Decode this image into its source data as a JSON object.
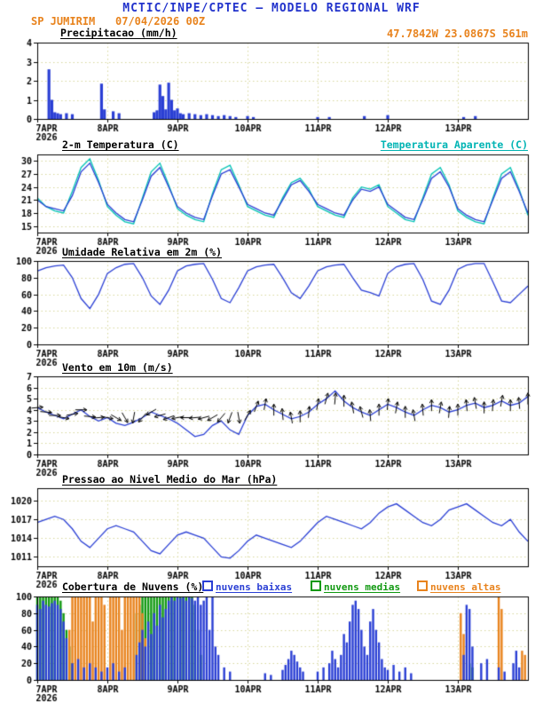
{
  "header": {
    "title": "MCTIC/INPE/CPTEC — MODELO REGIONAL WRF",
    "station": "SP JUMIRIM",
    "run": "07/04/2026 00Z",
    "location": "47.7842W 23.0867S 561m"
  },
  "colors": {
    "header_blue": "#2233cc",
    "accent_orange": "#e8831d",
    "line_blue": "#2a3fd4",
    "apparent_cyan": "#00b4b4",
    "cloud_green": "#119911",
    "grid_dots": "#d6d69c",
    "axis_black": "#000000"
  },
  "x_axis": {
    "tick_labels": [
      "7APR",
      "8APR",
      "9APR",
      "10APR",
      "11APR",
      "12APR",
      "13APR"
    ],
    "year": "2026",
    "hours_total": 168,
    "tick_interval_hours": 24
  },
  "chart_data": [
    {
      "id": "precipitation",
      "type": "bar",
      "title": "Precipitacao (mm/h)",
      "ylabel": "mm/h",
      "ylim": [
        0,
        4
      ],
      "yticks": [
        0,
        1,
        2,
        3,
        4
      ],
      "color": "#2a3fd4",
      "bars": [
        [
          4,
          2.6
        ],
        [
          5,
          1.0
        ],
        [
          6,
          0.35
        ],
        [
          7,
          0.3
        ],
        [
          8,
          0.25
        ],
        [
          10,
          0.3
        ],
        [
          12,
          0.25
        ],
        [
          22,
          1.85
        ],
        [
          23,
          0.5
        ],
        [
          26,
          0.4
        ],
        [
          28,
          0.3
        ],
        [
          40,
          0.35
        ],
        [
          41,
          0.45
        ],
        [
          42,
          1.8
        ],
        [
          43,
          1.2
        ],
        [
          44,
          0.5
        ],
        [
          45,
          1.9
        ],
        [
          46,
          1.0
        ],
        [
          47,
          0.45
        ],
        [
          48,
          0.55
        ],
        [
          49,
          0.3
        ],
        [
          50,
          0.25
        ],
        [
          52,
          0.3
        ],
        [
          54,
          0.25
        ],
        [
          56,
          0.2
        ],
        [
          58,
          0.25
        ],
        [
          60,
          0.2
        ],
        [
          62,
          0.15
        ],
        [
          64,
          0.2
        ],
        [
          66,
          0.15
        ],
        [
          68,
          0.1
        ],
        [
          72,
          0.15
        ],
        [
          74,
          0.1
        ],
        [
          96,
          0.1
        ],
        [
          100,
          0.1
        ],
        [
          112,
          0.15
        ],
        [
          120,
          0.2
        ],
        [
          146,
          0.1
        ],
        [
          150,
          0.15
        ]
      ]
    },
    {
      "id": "temperature",
      "type": "line",
      "title": "2-m Temperatura (C)",
      "legend_right": "Temperatura Aparente (C)",
      "ylim": [
        13.5,
        31.5
      ],
      "yticks": [
        15,
        18,
        21,
        24,
        27,
        30
      ],
      "x_step_hours": 3,
      "series": [
        {
          "name": "Temperatura Aparente (C)",
          "color": "#00c3b4",
          "values": [
            21.5,
            19.5,
            18.5,
            18,
            23,
            28.5,
            30.5,
            25.5,
            19.5,
            17.5,
            16,
            15.5,
            21.5,
            27.5,
            29.5,
            24.5,
            19,
            17.5,
            16.5,
            16,
            22.5,
            28,
            29,
            24.5,
            19.5,
            18.5,
            17.5,
            17,
            21.5,
            25,
            26,
            23.5,
            19.5,
            18.5,
            17.5,
            17,
            21.5,
            24,
            23.5,
            24.5,
            19.5,
            18,
            16.5,
            16,
            21.5,
            27,
            28.5,
            24.5,
            18.5,
            17,
            16,
            15.5,
            21.5,
            27,
            28.5,
            23.5,
            17.5
          ]
        },
        {
          "name": "2-m Temperatura (C)",
          "color": "#2a3fd4",
          "values": [
            21,
            19.5,
            19,
            18.5,
            22,
            27.5,
            29.5,
            25,
            20,
            18,
            16.5,
            16,
            21,
            26.5,
            28.5,
            24,
            19.5,
            18,
            17,
            16.5,
            22,
            27,
            28,
            24,
            20,
            19,
            18,
            17.5,
            21,
            24.5,
            25.5,
            23,
            20,
            19,
            18,
            17.5,
            21,
            23.5,
            23,
            24,
            20,
            18.5,
            17,
            16.5,
            21,
            26,
            27.5,
            24,
            19,
            17.5,
            16.5,
            16,
            21,
            26,
            27.5,
            23,
            18
          ]
        }
      ]
    },
    {
      "id": "humidity",
      "type": "line",
      "title": "Umidade Relativa em 2m (%)",
      "ylim": [
        0,
        100
      ],
      "yticks": [
        0,
        20,
        40,
        60,
        80,
        100
      ],
      "x_step_hours": 3,
      "series": [
        {
          "name": "Umidade Relativa",
          "color": "#2a3fd4",
          "values": [
            88,
            92,
            94,
            95,
            80,
            55,
            43,
            60,
            85,
            92,
            96,
            97,
            80,
            58,
            48,
            65,
            88,
            94,
            96,
            97,
            78,
            55,
            50,
            68,
            88,
            93,
            95,
            96,
            80,
            62,
            55,
            70,
            88,
            93,
            95,
            96,
            80,
            65,
            62,
            58,
            85,
            93,
            96,
            97,
            78,
            52,
            48,
            65,
            90,
            95,
            97,
            97,
            75,
            52,
            50,
            60,
            70
          ]
        }
      ]
    },
    {
      "id": "wind",
      "type": "wind",
      "title": "Vento em 10m (m/s)",
      "ylim": [
        0,
        7
      ],
      "yticks": [
        0,
        1,
        2,
        3,
        4,
        5,
        6,
        7
      ],
      "x_step_hours": 3,
      "series": [
        {
          "name": "Velocidade do vento",
          "color": "#2a3fd4",
          "values": [
            4.2,
            3.8,
            3.5,
            3.2,
            3.6,
            4.0,
            3.4,
            3.0,
            3.3,
            2.8,
            2.6,
            2.9,
            3.3,
            3.8,
            3.5,
            3.2,
            2.8,
            2.2,
            1.6,
            1.8,
            2.6,
            3.0,
            2.2,
            1.8,
            3.5,
            4.3,
            4.5,
            4.0,
            3.6,
            3.2,
            3.4,
            3.8,
            4.5,
            5.0,
            5.7,
            4.8,
            4.2,
            3.8,
            3.5,
            4.0,
            4.5,
            4.2,
            3.8,
            3.5,
            4.0,
            4.4,
            4.2,
            3.8,
            4.0,
            4.4,
            4.6,
            4.2,
            4.4,
            4.8,
            4.4,
            4.6,
            5.2
          ]
        }
      ],
      "barbs": {
        "color": "#000000",
        "directions_deg": [
          85,
          95,
          90,
          100,
          80,
          90,
          95,
          85,
          100,
          120,
          150,
          190,
          220,
          240,
          255,
          250,
          260,
          270,
          265,
          255,
          240,
          220,
          200,
          170,
          30,
          20,
          10,
          0,
          355,
          350,
          0,
          5,
          10,
          15,
          5,
          0,
          350,
          345,
          355,
          0,
          5,
          10,
          0,
          350,
          355,
          0,
          10,
          5,
          0,
          355,
          350,
          0,
          5,
          10,
          0,
          355,
          0
        ]
      }
    },
    {
      "id": "pressure",
      "type": "line",
      "title": "Pressao ao Nivel Medio do Mar (hPa)",
      "ylim": [
        1009.5,
        1022
      ],
      "yticks": [
        1011,
        1014,
        1017,
        1020
      ],
      "x_step_hours": 3,
      "series": [
        {
          "name": "Pressao ao nivel medio do mar",
          "color": "#2a3fd4",
          "values": [
            1016.5,
            1017,
            1017.5,
            1017,
            1015.5,
            1013.5,
            1012.5,
            1014,
            1015.5,
            1016,
            1015.5,
            1015,
            1013.5,
            1012,
            1011.5,
            1013,
            1014.5,
            1015,
            1014.5,
            1014,
            1012.5,
            1011,
            1010.8,
            1012,
            1013.5,
            1014.5,
            1014,
            1013.5,
            1013,
            1012.5,
            1013.5,
            1015,
            1016.5,
            1017.5,
            1017,
            1016.5,
            1016,
            1015.5,
            1016.5,
            1018,
            1019,
            1019.5,
            1018.5,
            1017.5,
            1016.5,
            1016,
            1017,
            1018.5,
            1019,
            1019.5,
            1018.5,
            1017.5,
            1016.5,
            1016,
            1017,
            1015,
            1013.5
          ]
        }
      ]
    },
    {
      "id": "clouds",
      "type": "multibar",
      "title": "Cobertura de Nuvens (%)",
      "ylim": [
        0,
        100
      ],
      "yticks": [
        0,
        20,
        40,
        60,
        80,
        100
      ],
      "x_step_hours": 1,
      "legend": [
        {
          "label": "nuvens baixas",
          "color": "#2a3fd4"
        },
        {
          "label": "nuvens medias",
          "color": "#119911"
        },
        {
          "label": "nuvens altas",
          "color": "#e8831d"
        }
      ],
      "series": [
        {
          "name": "nuvens baixas",
          "color": "#2a3fd4",
          "values": [
            90,
            85,
            95,
            90,
            88,
            92,
            95,
            90,
            85,
            70,
            50,
            0,
            20,
            0,
            25,
            0,
            15,
            0,
            20,
            0,
            15,
            0,
            10,
            0,
            15,
            0,
            20,
            0,
            10,
            0,
            15,
            0,
            0,
            0,
            30,
            45,
            60,
            40,
            70,
            55,
            80,
            65,
            90,
            75,
            85,
            95,
            100,
            95,
            100,
            98,
            100,
            95,
            100,
            98,
            95,
            100,
            90,
            95,
            100,
            60,
            100,
            40,
            30,
            0,
            15,
            0,
            10,
            0,
            0,
            0,
            0,
            0,
            0,
            0,
            0,
            0,
            0,
            0,
            8,
            0,
            6,
            0,
            0,
            0,
            12,
            18,
            25,
            35,
            30,
            22,
            15,
            10,
            0,
            0,
            0,
            0,
            10,
            0,
            15,
            0,
            20,
            35,
            25,
            15,
            30,
            55,
            45,
            70,
            90,
            95,
            85,
            60,
            40,
            30,
            70,
            85,
            60,
            45,
            25,
            15,
            12,
            0,
            18,
            0,
            10,
            0,
            15,
            0,
            8,
            0,
            0,
            0,
            0,
            0,
            0,
            0,
            0,
            0,
            0,
            0,
            0,
            0,
            0,
            0,
            0,
            0,
            30,
            90,
            85,
            40,
            0,
            0,
            20,
            0,
            25,
            0,
            0,
            0,
            15,
            0,
            10,
            0,
            0,
            20,
            35,
            15,
            0,
            0,
            0
          ]
        },
        {
          "name": "nuvens medias",
          "color": "#119911",
          "values": [
            100,
            100,
            100,
            100,
            100,
            100,
            100,
            100,
            95,
            80,
            60,
            40,
            20,
            0,
            0,
            0,
            0,
            0,
            0,
            0,
            0,
            0,
            0,
            0,
            0,
            0,
            0,
            0,
            0,
            0,
            0,
            0,
            0,
            0,
            80,
            90,
            100,
            100,
            100,
            100,
            100,
            100,
            100,
            100,
            100,
            100,
            100,
            100,
            100,
            100,
            100,
            100,
            100,
            100,
            90,
            60,
            30,
            0,
            0,
            0,
            0,
            0,
            0,
            0,
            0,
            0,
            0,
            0,
            0,
            0,
            0,
            0,
            0,
            0,
            0,
            0,
            0,
            0,
            0,
            0,
            0,
            0,
            0,
            0,
            0,
            0,
            0,
            0,
            0,
            0,
            0,
            0,
            0,
            0,
            0,
            0,
            0,
            0,
            0,
            0,
            0,
            0,
            0,
            0,
            0,
            0,
            0,
            0,
            0,
            0,
            0,
            0,
            0,
            0,
            0,
            0,
            0,
            0,
            0,
            0,
            0,
            0,
            0,
            0,
            0,
            0,
            0,
            0,
            0,
            0,
            0,
            0,
            0,
            0,
            0,
            0,
            0,
            0,
            0,
            0,
            0,
            0,
            0,
            0,
            0,
            0,
            0,
            0,
            20,
            15,
            0,
            0,
            0,
            0,
            0,
            0,
            0,
            0,
            0,
            0,
            0,
            0,
            0,
            0,
            0,
            0,
            0,
            0,
            0
          ]
        },
        {
          "name": "nuvens altas",
          "color": "#e8831d",
          "values": [
            0,
            0,
            0,
            0,
            0,
            0,
            0,
            0,
            0,
            0,
            0,
            60,
            100,
            100,
            100,
            100,
            100,
            100,
            100,
            70,
            100,
            100,
            100,
            90,
            0,
            100,
            100,
            100,
            100,
            60,
            100,
            100,
            100,
            100,
            100,
            100,
            80,
            50,
            0,
            0,
            0,
            0,
            0,
            0,
            0,
            0,
            0,
            0,
            0,
            0,
            0,
            0,
            0,
            0,
            0,
            0,
            0,
            0,
            0,
            0,
            0,
            0,
            0,
            0,
            0,
            0,
            0,
            0,
            0,
            0,
            0,
            0,
            0,
            0,
            0,
            0,
            0,
            0,
            0,
            0,
            0,
            0,
            0,
            0,
            0,
            0,
            0,
            0,
            0,
            0,
            0,
            0,
            0,
            0,
            0,
            0,
            0,
            0,
            0,
            0,
            0,
            0,
            0,
            0,
            0,
            0,
            0,
            0,
            0,
            0,
            0,
            0,
            0,
            0,
            0,
            0,
            0,
            0,
            0,
            0,
            0,
            0,
            0,
            0,
            0,
            0,
            0,
            0,
            0,
            0,
            0,
            0,
            0,
            0,
            0,
            0,
            0,
            0,
            0,
            0,
            0,
            0,
            0,
            0,
            0,
            80,
            55,
            0,
            0,
            0,
            0,
            0,
            0,
            0,
            0,
            0,
            0,
            0,
            100,
            85,
            0,
            0,
            0,
            0,
            0,
            0,
            35,
            30,
            0
          ]
        }
      ]
    }
  ]
}
